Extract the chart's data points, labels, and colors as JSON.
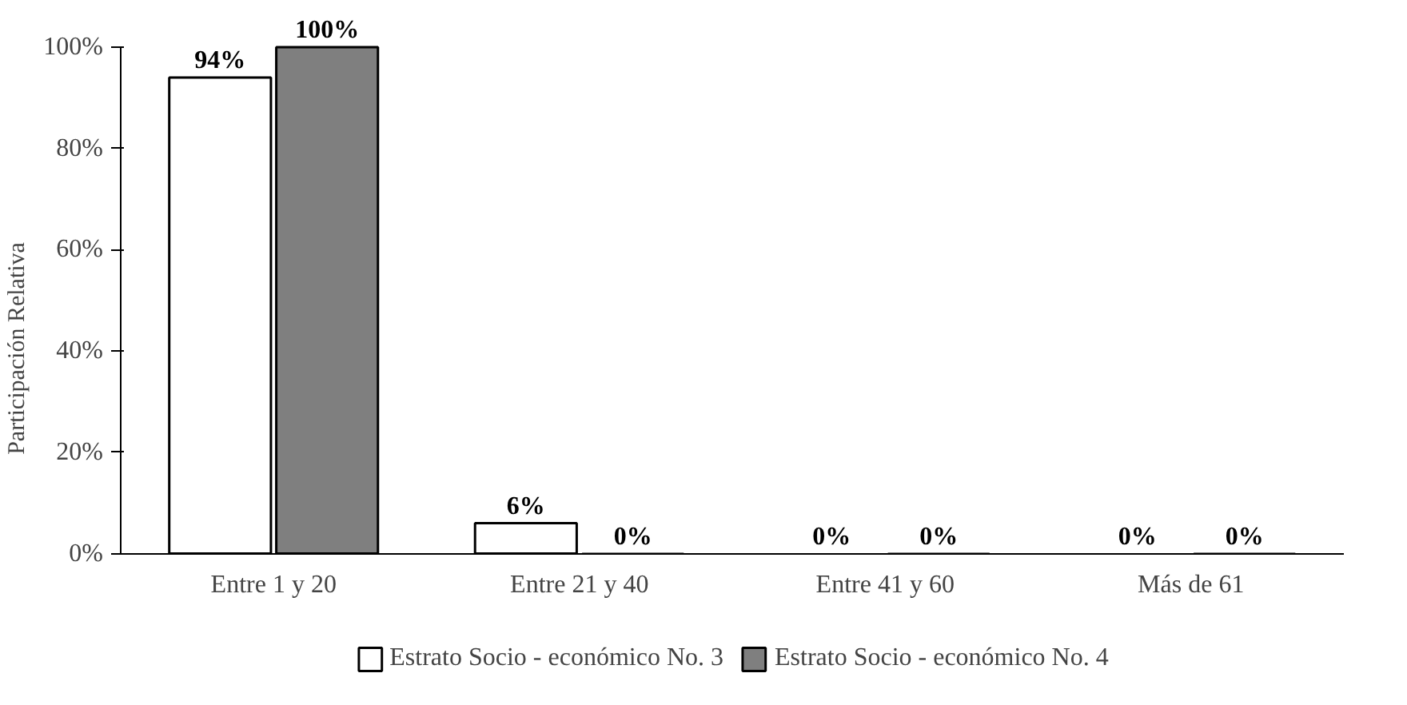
{
  "chart_data": {
    "type": "bar",
    "ylabel": "Participación Relativa",
    "categories": [
      "Entre 1 y 20",
      "Entre 21 y 40",
      "Entre 41 y 60",
      "Más de 61"
    ],
    "series": [
      {
        "name": "Estrato Socio - económico No. 3",
        "color": "#ffffff",
        "values": [
          94,
          6,
          0,
          0
        ],
        "value_labels": [
          "94%",
          "6%",
          "0%",
          "0%"
        ]
      },
      {
        "name": "Estrato Socio - económico No. 4",
        "color": "#7f7f7f",
        "values": [
          100,
          0,
          0,
          0
        ],
        "value_labels": [
          "100%",
          "0%",
          "0%",
          "0%"
        ]
      }
    ],
    "ylim": [
      0,
      100
    ],
    "yticks": [
      {
        "value": 0,
        "label": "0%"
      },
      {
        "value": 20,
        "label": "20%"
      },
      {
        "value": 40,
        "label": "40%"
      },
      {
        "value": 60,
        "label": "60%"
      },
      {
        "value": 80,
        "label": "80%"
      },
      {
        "value": 100,
        "label": "100%"
      }
    ],
    "grid": false,
    "legend": "bottom"
  }
}
